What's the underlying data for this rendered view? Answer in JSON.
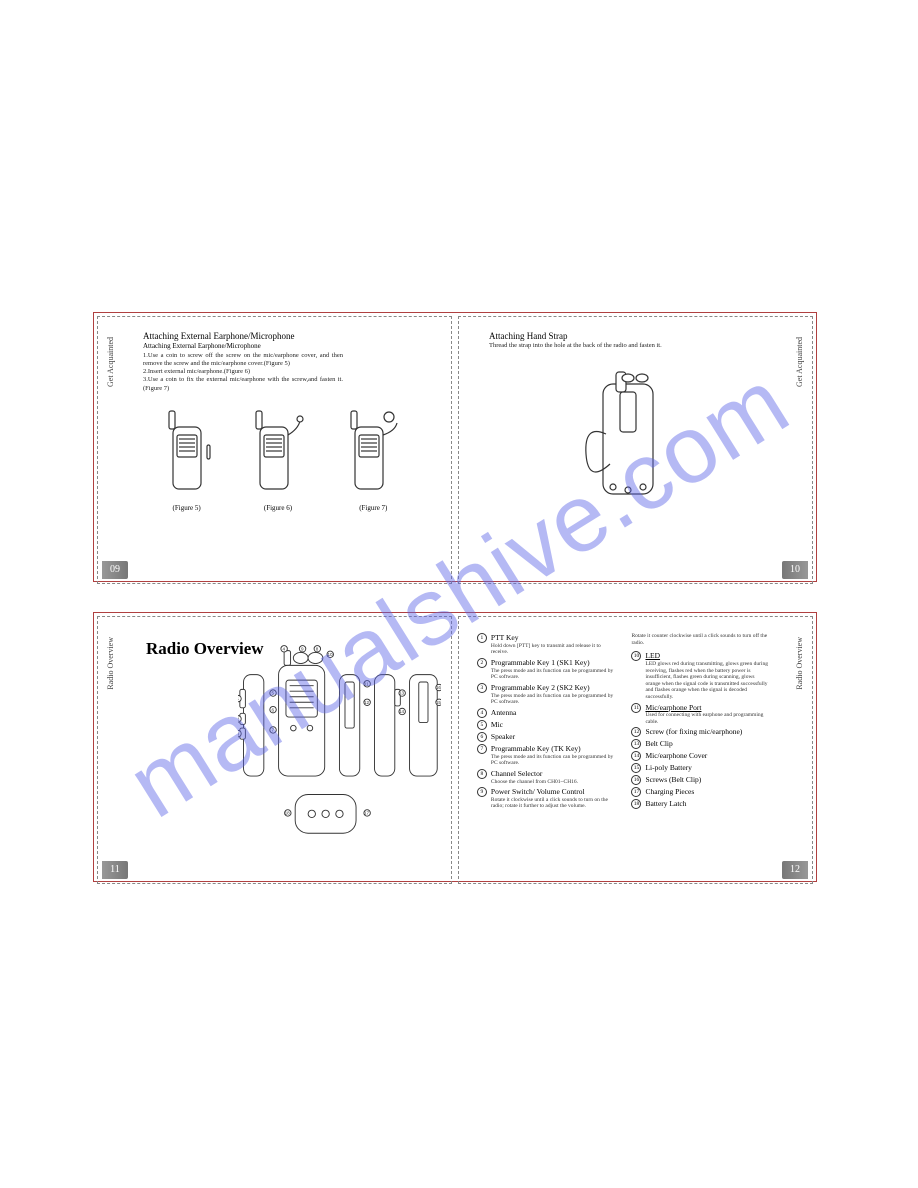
{
  "watermark": "manualshive.com",
  "spread1": {
    "left": {
      "side_label": "Get Acquainted",
      "page_num": "09",
      "heading": "Attaching External Earphone/Microphone",
      "subhead": "Attaching External Earphone/Microphone",
      "para": "1.Use a coin to screw off the screw on the mic/earphone cover, and then remove the screw and the mic/earphone cover.(Figure 5)\n2.Insert external mic/earphone.(Figure 6)\n3.Use a coin to fix the external mic/earphone with the screw,and fasten it.(Figure 7)",
      "fig5": "(Figure 5)",
      "fig6": "(Figure 6)",
      "fig7": "(Figure 7)"
    },
    "right": {
      "side_label": "Get Acquainted",
      "page_num": "10",
      "heading": "Attaching Hand Strap",
      "para": "Thread the strap into the hole at the back of the radio and fasten it."
    }
  },
  "spread2": {
    "left": {
      "side_label": "Radio Overview",
      "page_num": "11",
      "title": "Radio Overview"
    },
    "right": {
      "side_label": "Radio Overview",
      "page_num": "12",
      "rotate_note": "Rotate it counter clockwise until a click sounds to turn off the radio.",
      "items_col1": [
        {
          "n": "1",
          "t": "PTT Key",
          "d": "Hold down [PTT] key to transmit and release it to receive."
        },
        {
          "n": "2",
          "t": "Programmable Key 1 (SK1 Key)",
          "d": "The press mode and its function can be programmed by PC software."
        },
        {
          "n": "3",
          "t": "Programmable Key 2 (SK2 Key)",
          "d": "The press mode and its function can be programmed by PC software."
        },
        {
          "n": "4",
          "t": "Antenna",
          "d": ""
        },
        {
          "n": "5",
          "t": "Mic",
          "d": ""
        },
        {
          "n": "6",
          "t": "Speaker",
          "d": ""
        },
        {
          "n": "7",
          "t": "Programmable Key (TK Key)",
          "d": "The press mode and its function can be programmed by PC software."
        },
        {
          "n": "8",
          "t": "Channel Selector",
          "d": "Choose the channel from CH01~CH16."
        },
        {
          "n": "9",
          "t": "Power Switch/ Volume Control",
          "d": "Rotate it clockwise until a click sounds to turn on the radio; rotate it further to adjust the volume."
        }
      ],
      "items_col2": [
        {
          "n": "10",
          "t": "LED",
          "u": true,
          "d": "LED glows red during transmitting, glows green during receiving, flashes red when the battery power is insufficient, flashes green during scanning, glows orange when the signal code is transmitted successfully and flashes orange when the signal is decoded successfully."
        },
        {
          "n": "11",
          "t": "Mic/earphone Port",
          "u": true,
          "d": "Used for connecting with earphone and programming cable."
        },
        {
          "n": "12",
          "t": "Screw (for fixing mic/earphone)",
          "d": ""
        },
        {
          "n": "13",
          "t": "Belt Clip",
          "d": ""
        },
        {
          "n": "14",
          "t": "Mic/earphone Cover",
          "d": ""
        },
        {
          "n": "15",
          "t": "Li-poly Battery",
          "d": ""
        },
        {
          "n": "16",
          "t": "Screws (Belt Clip)",
          "d": ""
        },
        {
          "n": "17",
          "t": "Charging Pieces",
          "d": ""
        },
        {
          "n": "18",
          "t": "Battery Latch",
          "d": ""
        }
      ]
    }
  },
  "colors": {
    "border": "#b04040",
    "watermark": "rgba(90,100,230,0.45)",
    "pagenum_bg": "#888"
  }
}
